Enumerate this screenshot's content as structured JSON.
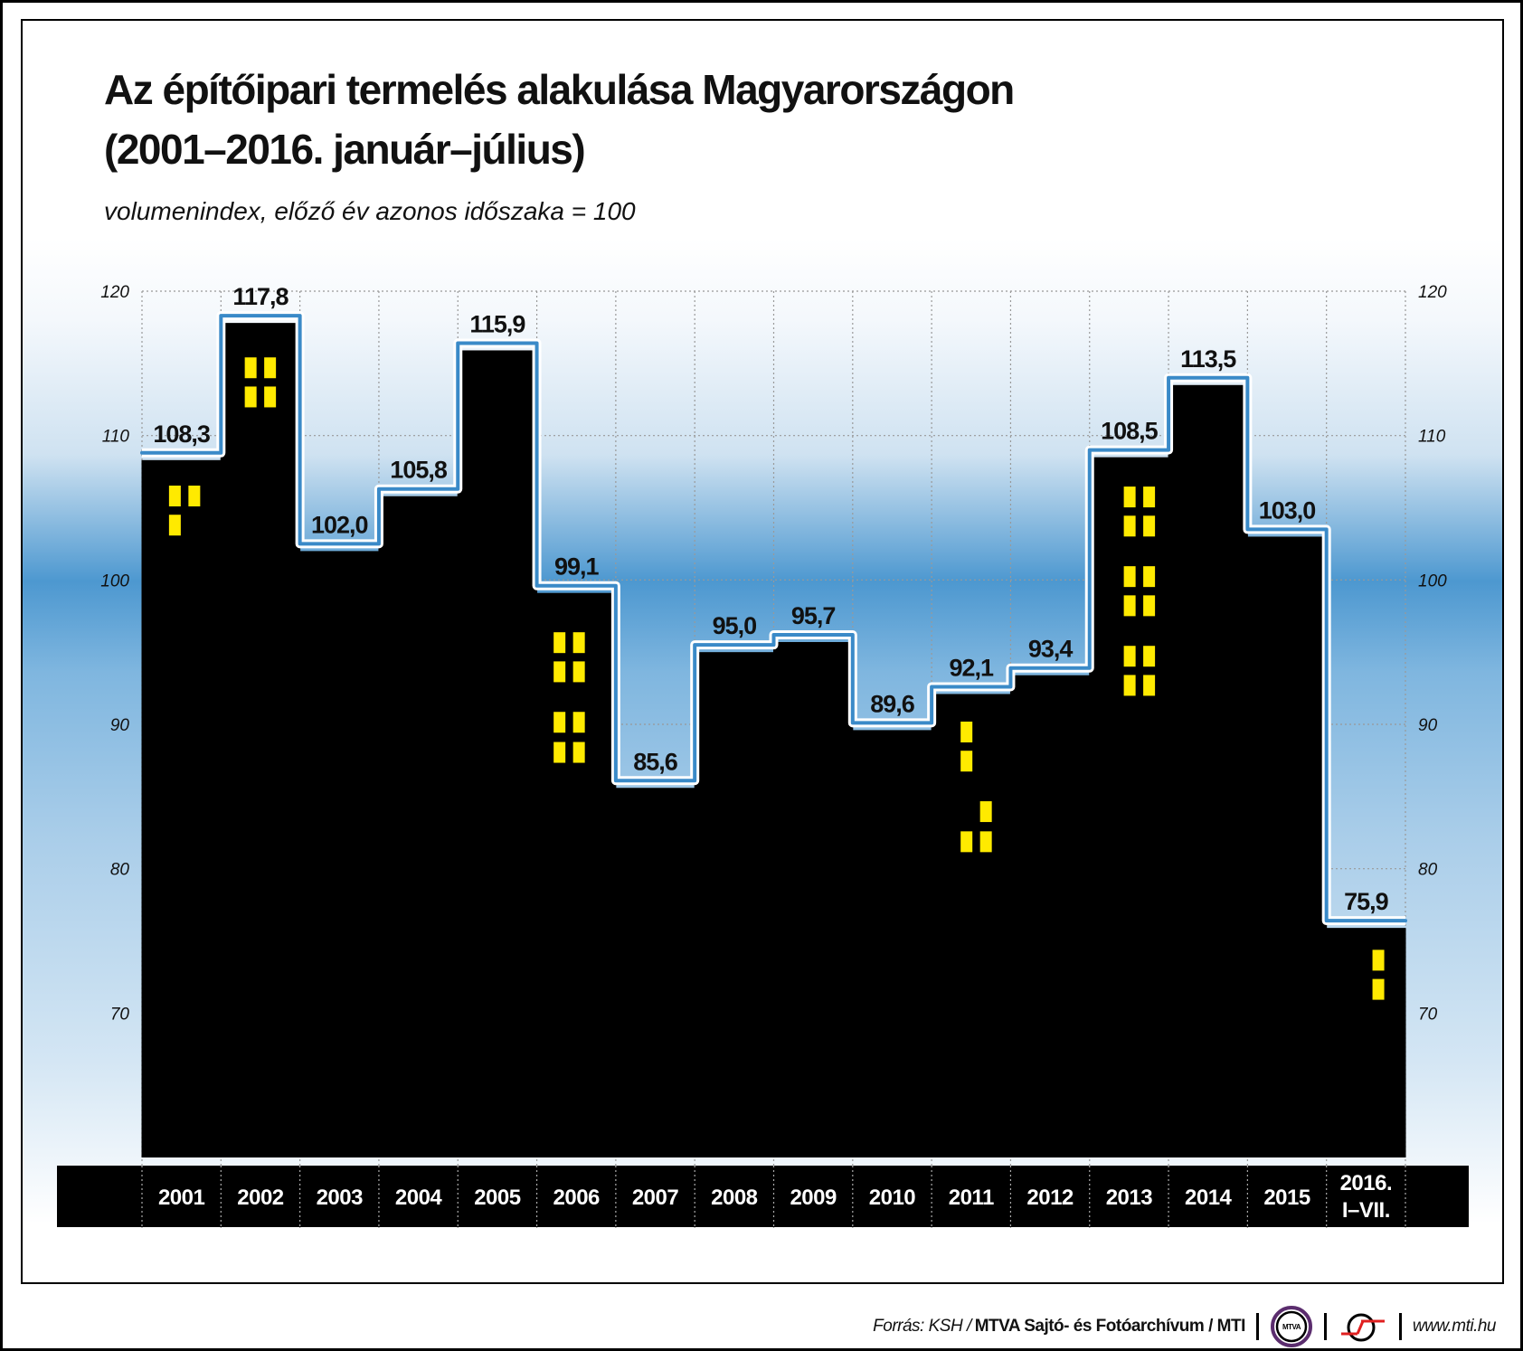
{
  "title_line1": "Az építőipari termelés alakulása Magyarországon",
  "title_line2": "(2001–2016. január–július)",
  "subtitle": "volumenindex, előző év azonos időszaka = 100",
  "chart_data": {
    "type": "bar",
    "style": "stepped skyline (black building silhouette with blue outline)",
    "categories": [
      "2001",
      "2002",
      "2003",
      "2004",
      "2005",
      "2006",
      "2007",
      "2008",
      "2009",
      "2010",
      "2011",
      "2012",
      "2013",
      "2014",
      "2015",
      "2016. I–VII."
    ],
    "category_lines": [
      [
        "2001"
      ],
      [
        "2002"
      ],
      [
        "2003"
      ],
      [
        "2004"
      ],
      [
        "2005"
      ],
      [
        "2006"
      ],
      [
        "2007"
      ],
      [
        "2008"
      ],
      [
        "2009"
      ],
      [
        "2010"
      ],
      [
        "2011"
      ],
      [
        "2012"
      ],
      [
        "2013"
      ],
      [
        "2014"
      ],
      [
        "2015"
      ],
      [
        "2016.",
        "I–VII."
      ]
    ],
    "values": [
      108.3,
      117.8,
      102.0,
      105.8,
      115.9,
      99.1,
      85.6,
      95.0,
      95.7,
      89.6,
      92.1,
      93.4,
      108.5,
      113.5,
      103.0,
      75.9
    ],
    "value_labels": [
      "108,3",
      "117,8",
      "102,0",
      "105,8",
      "115,9",
      "99,1",
      "85,6",
      "95,0",
      "95,7",
      "89,6",
      "92,1",
      "93,4",
      "108,5",
      "113,5",
      "103,0",
      "75,9"
    ],
    "ylim": [
      60,
      120
    ],
    "yticks": [
      70,
      80,
      90,
      100,
      110,
      120
    ],
    "ytick_labels": [
      "70",
      "80",
      "90",
      "100",
      "110",
      "120"
    ],
    "axis_sides": "left and right",
    "grid": true,
    "colors": {
      "fill": "#000000",
      "outline": "#3a8ac8",
      "windows": "#ffea00",
      "background_band": "#4d98d0"
    }
  },
  "footer": {
    "source_prefix": "Forrás: KSH / ",
    "source_bold": "MTVA Sajtó- és Fotóarchívum / MTI",
    "logo1_text": "MTVA",
    "url": "www.mti.hu"
  }
}
